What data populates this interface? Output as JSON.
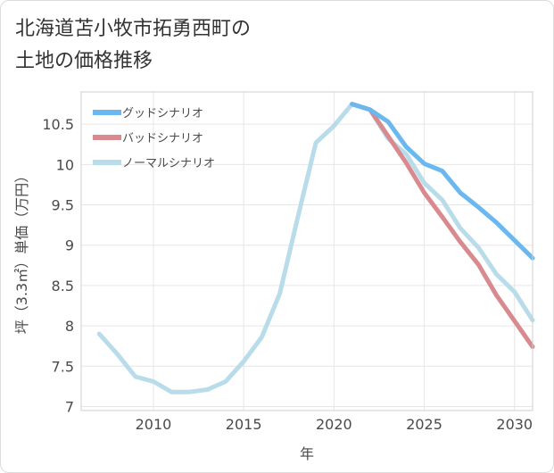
{
  "title": "北海道苫小牧市拓勇西町の\n土地の価格推移",
  "chart_data": {
    "type": "line",
    "xlabel": "年",
    "ylabel": "坪（3.3㎡）単価（万円）",
    "xlim": [
      2006,
      2031
    ],
    "ylim": [
      6.95,
      10.9
    ],
    "x_ticks": [
      2010,
      2015,
      2020,
      2025,
      2030
    ],
    "y_ticks": [
      7,
      7.5,
      8,
      8.5,
      9,
      9.5,
      10,
      10.5
    ],
    "grid": true,
    "legend_position": "top-left",
    "series": [
      {
        "name": "グッドシナリオ",
        "color": "#6bb8f0",
        "x": [
          2021,
          2022,
          2023,
          2024,
          2025,
          2026,
          2027,
          2028,
          2029,
          2030,
          2031
        ],
        "y": [
          10.75,
          10.68,
          10.53,
          10.22,
          10.01,
          9.92,
          9.65,
          9.47,
          9.28,
          9.06,
          8.84
        ]
      },
      {
        "name": "バッドシナリオ",
        "color": "#d98a8f",
        "x": [
          2021,
          2022,
          2023,
          2024,
          2025,
          2026,
          2027,
          2028,
          2029,
          2030,
          2031
        ],
        "y": [
          10.75,
          10.68,
          10.35,
          10.02,
          9.65,
          9.35,
          9.04,
          8.76,
          8.38,
          8.06,
          7.74
        ]
      },
      {
        "name": "ノーマルシナリオ",
        "color": "#b9dcea",
        "x": [
          2007,
          2008,
          2009,
          2010,
          2011,
          2012,
          2013,
          2014,
          2015,
          2016,
          2017,
          2018,
          2019,
          2020,
          2021,
          2022,
          2023,
          2024,
          2025,
          2026,
          2027,
          2028,
          2029,
          2030,
          2031
        ],
        "y": [
          7.9,
          7.65,
          7.37,
          7.31,
          7.18,
          7.18,
          7.21,
          7.31,
          7.56,
          7.86,
          8.4,
          9.35,
          10.27,
          10.48,
          10.75,
          10.68,
          10.32,
          10.13,
          9.77,
          9.56,
          9.21,
          8.97,
          8.64,
          8.42,
          8.07
        ]
      }
    ]
  }
}
